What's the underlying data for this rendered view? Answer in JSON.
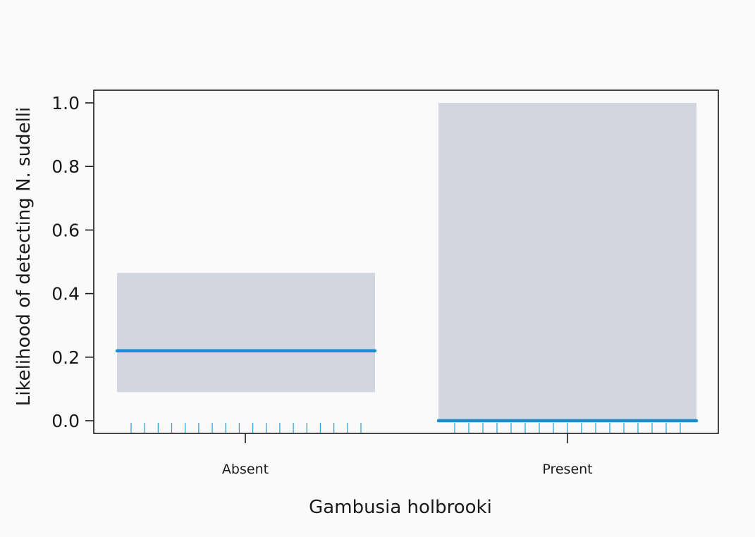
{
  "chart_data": {
    "type": "bar",
    "title": "",
    "xlabel": "Gambusia holbrooki",
    "ylabel": "Likelihood of detecting N. sudelli",
    "ylim": [
      0,
      1.0
    ],
    "yticks": [
      "0.0",
      "0.2",
      "0.4",
      "0.6",
      "0.8",
      "1.0"
    ],
    "categories": [
      "Absent",
      "Present"
    ],
    "estimate": [
      0.22,
      0.0
    ],
    "ci_lower": [
      0.09,
      0.0
    ],
    "ci_upper": [
      0.465,
      1.0
    ],
    "rug_counts": [
      18,
      17
    ],
    "grid": false,
    "legend": "none",
    "colors": {
      "band": "#d3d6de",
      "estimate_line": "#1b8ed0",
      "rug": "#3aa0d8",
      "axis": "#1a1a1a"
    }
  }
}
